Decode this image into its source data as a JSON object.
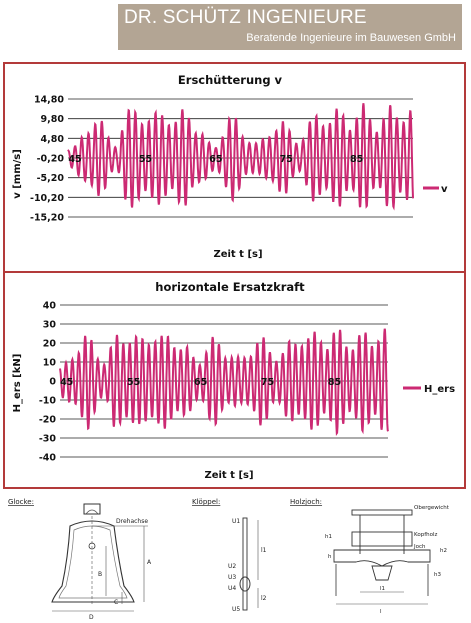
{
  "header": {
    "company": "DR. SCHÜTZ INGENIEURE",
    "tagline": "Beratende Ingenieure im Bauwesen GmbH"
  },
  "colors": {
    "banner": "#b3a594",
    "frame": "#b33a3a",
    "series": "#cc2a73"
  },
  "chart_data": [
    {
      "type": "line",
      "title": "Erschütterung v",
      "xlabel": "Zeit t [s]",
      "ylabel": "v [mm/s]",
      "ylim": [
        -15.2,
        14.8
      ],
      "yticks": [
        "14,80",
        "9,80",
        "4,80",
        "-0,20",
        "-5,20",
        "-10,20",
        "-15,20"
      ],
      "ytick_values": [
        14.8,
        9.8,
        4.8,
        -0.2,
        -5.2,
        -10.2,
        -15.2
      ],
      "xlim": [
        44,
        93
      ],
      "xticks": [
        "45",
        "55",
        "65",
        "75",
        "85"
      ],
      "xtick_values": [
        45,
        55,
        65,
        75,
        85
      ],
      "grid": true,
      "legend": "right",
      "series": [
        {
          "name": "v",
          "envelope": {
            "t": [
              44,
              45,
              46,
              47,
              48,
              49,
              50,
              51,
              52,
              53,
              54,
              55,
              56,
              57,
              58,
              59,
              60,
              61,
              62,
              63,
              64,
              65,
              66,
              67,
              68,
              69,
              70,
              71,
              72,
              73,
              74,
              75,
              76,
              77,
              78,
              79,
              80,
              81,
              82,
              83,
              84,
              85,
              86,
              87,
              88,
              89,
              90,
              91,
              92,
              93
            ],
            "amplitude": [
              2.5,
              3,
              6,
              10,
              11.5,
              9,
              5,
              4,
              11,
              13,
              15,
              12,
              10.5,
              13,
              14.5,
              10,
              12,
              14,
              10,
              7,
              4,
              3.5,
              8,
              11,
              10.5,
              7,
              5,
              3.5,
              6,
              9,
              10,
              9,
              6,
              5,
              8,
              12,
              13,
              11,
              12.5,
              13,
              11,
              12.5,
              14,
              12,
              10,
              12,
              14,
              13,
              14.5,
              13
            ]
          }
        }
      ]
    },
    {
      "type": "line",
      "title": "horizontale Ersatzkraft",
      "xlabel": "Zeit t [s]",
      "ylabel": "H_ers [kN]",
      "ylim": [
        -40,
        40
      ],
      "yticks": [
        "40",
        "30",
        "20",
        "10",
        "0",
        "-10",
        "-20",
        "-30",
        "-40"
      ],
      "ytick_values": [
        40,
        30,
        20,
        10,
        0,
        -10,
        -20,
        -30,
        -40
      ],
      "xlim": [
        44,
        93
      ],
      "xticks": [
        "45",
        "55",
        "65",
        "75",
        "85"
      ],
      "xtick_values": [
        45,
        55,
        65,
        75,
        85
      ],
      "grid": true,
      "legend": "right",
      "series": [
        {
          "name": "H_ers",
          "envelope": {
            "t": [
              44,
              45,
              46,
              47,
              48,
              49,
              50,
              51,
              52,
              53,
              54,
              55,
              56,
              57,
              58,
              59,
              60,
              61,
              62,
              63,
              64,
              65,
              66,
              67,
              68,
              69,
              70,
              71,
              72,
              73,
              74,
              75,
              76,
              77,
              78,
              79,
              80,
              81,
              82,
              83,
              84,
              85,
              86,
              87,
              88,
              89,
              90,
              91,
              92,
              93
            ],
            "amplitude": [
              8,
              10,
              16,
              24,
              27,
              20,
              14,
              12,
              24,
              27,
              30,
              26,
              22,
              28,
              30,
              24,
              26,
              27,
              22,
              18,
              14,
              13,
              20,
              24,
              23,
              17,
              14,
              12,
              18,
              22,
              24,
              22,
              16,
              15,
              20,
              26,
              28,
              24,
              27,
              29,
              24,
              27,
              29,
              26,
              22,
              26,
              29,
              27,
              29,
              27
            ]
          }
        }
      ]
    }
  ],
  "drawings": {
    "bell": {
      "title": "Glocke:",
      "labels": [
        "Drehachse",
        "A",
        "B",
        "C",
        "D"
      ]
    },
    "clapper": {
      "title": "Klöppel:",
      "labels": [
        "U1",
        "U2",
        "U3",
        "U4",
        "U5",
        "l1",
        "l2"
      ]
    },
    "yoke": {
      "title": "Holzjoch:",
      "labels": [
        "Obergewicht",
        "Kopfholz",
        "Joch",
        "h1",
        "h",
        "h2",
        "h3",
        "l",
        "l1"
      ]
    }
  }
}
